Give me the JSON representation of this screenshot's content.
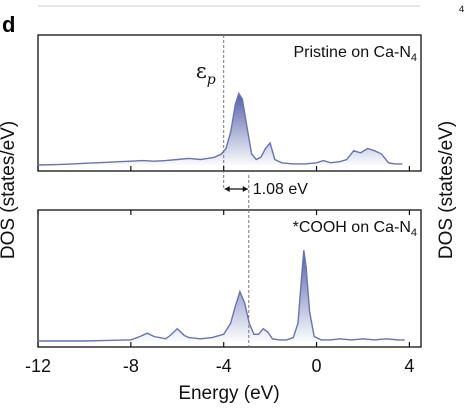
{
  "figure": {
    "panel_label": "d",
    "top_right_fragment": "⁴"
  },
  "chart_data": {
    "type": "line",
    "xlabel": "Energy (eV)",
    "ylabel_left": "DOS (states/eV)",
    "ylabel_right": "DOS (states/eV)",
    "xlim": [
      -12,
      4.5
    ],
    "xticks": [
      -12,
      -8,
      -4,
      0,
      4
    ],
    "xtick_labels": [
      "-12",
      "-8",
      "-4",
      "0",
      "4"
    ],
    "fill_under_curve": true,
    "line_color": "#6674b4",
    "fill_color": "#3f4f9f",
    "panels": [
      {
        "name": "Pristine on Ca-N4",
        "label_main": "Pristine on Ca-N",
        "label_sub": "4",
        "ylim": [
          0,
          1
        ],
        "baseline": 0.05,
        "vline_x": -4.0,
        "vline_label": "ε",
        "vline_label_sub": "p",
        "x": [
          -12,
          -11,
          -10.5,
          -10,
          -9.5,
          -9,
          -8.5,
          -8,
          -7.5,
          -7,
          -6.5,
          -6,
          -5.5,
          -5,
          -4.7,
          -4.4,
          -4.1,
          -3.9,
          -3.7,
          -3.5,
          -3.35,
          -3.2,
          -3.0,
          -2.8,
          -2.6,
          -2.4,
          -2.2,
          -2.0,
          -1.8,
          -1.5,
          -1.0,
          -0.5,
          0.0,
          0.3,
          0.6,
          1.0,
          1.3,
          1.6,
          1.9,
          2.2,
          2.5,
          2.8,
          3.1,
          3.4,
          3.7
        ],
        "y": [
          0.05,
          0.055,
          0.06,
          0.065,
          0.07,
          0.075,
          0.08,
          0.085,
          0.09,
          0.085,
          0.09,
          0.1,
          0.11,
          0.1,
          0.11,
          0.12,
          0.15,
          0.2,
          0.35,
          0.6,
          0.7,
          0.65,
          0.4,
          0.15,
          0.1,
          0.12,
          0.2,
          0.25,
          0.1,
          0.07,
          0.06,
          0.06,
          0.07,
          0.09,
          0.07,
          0.08,
          0.1,
          0.18,
          0.16,
          0.2,
          0.18,
          0.15,
          0.07,
          0.06,
          0.06
        ]
      },
      {
        "name": "*COOH on Ca-N4",
        "label_main": "*COOH on Ca-N",
        "label_sub": "4",
        "ylim": [
          0,
          1
        ],
        "baseline": 0.04,
        "vline_x": -2.92,
        "x": [
          -12,
          -10,
          -9,
          -8,
          -7.6,
          -7.3,
          -7.0,
          -6.5,
          -6.3,
          -6.0,
          -5.7,
          -5.5,
          -5.0,
          -4.5,
          -4.0,
          -3.7,
          -3.5,
          -3.3,
          -3.1,
          -2.9,
          -2.7,
          -2.5,
          -2.3,
          -2.1,
          -1.9,
          -1.6,
          -1.3,
          -1.0,
          -0.8,
          -0.65,
          -0.55,
          -0.45,
          -0.3,
          -0.1,
          0.2,
          0.6,
          1.0,
          1.5,
          2.0,
          2.5,
          3.0,
          3.5,
          3.8
        ],
        "y": [
          0.04,
          0.04,
          0.045,
          0.05,
          0.08,
          0.11,
          0.08,
          0.06,
          0.09,
          0.15,
          0.09,
          0.07,
          0.06,
          0.07,
          0.1,
          0.2,
          0.35,
          0.48,
          0.38,
          0.2,
          0.1,
          0.1,
          0.15,
          0.12,
          0.06,
          0.05,
          0.05,
          0.07,
          0.2,
          0.6,
          0.85,
          0.7,
          0.3,
          0.08,
          0.05,
          0.05,
          0.06,
          0.05,
          0.06,
          0.05,
          0.06,
          0.05,
          0.05
        ]
      }
    ],
    "annotation": {
      "text": "1.08 eV",
      "from_x": -4.0,
      "to_x": -2.92
    }
  }
}
